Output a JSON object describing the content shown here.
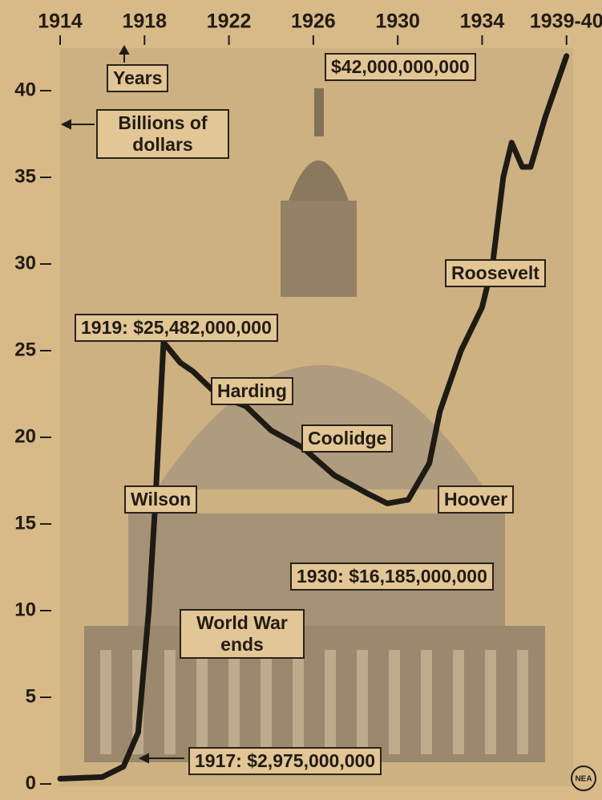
{
  "chart_data": {
    "type": "line",
    "x": [
      1914,
      1916,
      1917,
      1917.7,
      1918.2,
      1918.5,
      1918.9,
      1919.7,
      1920.3,
      1921.5,
      1922.8,
      1924,
      1925.5,
      1927,
      1928.5,
      1929.5,
      1930.5,
      1931.5,
      1932,
      1933,
      1934,
      1934.5,
      1935,
      1935.4,
      1935.9,
      1936.3,
      1937,
      1938
    ],
    "values": [
      0.3,
      0.4,
      1.0,
      2.975,
      10,
      16,
      25.482,
      24.3,
      23.8,
      22.4,
      21.8,
      20.4,
      19.4,
      17.8,
      16.8,
      16.185,
      16.4,
      18.5,
      21.5,
      25,
      27.5,
      30,
      35,
      37,
      35.6,
      35.6,
      38.5,
      42
    ],
    "color": "#1e1a14",
    "xlim": [
      1914,
      1938.2
    ],
    "xticks": [
      1914,
      1918,
      1922,
      1926,
      1930,
      1934,
      {
        "value": 1938,
        "label": "1939-40"
      }
    ],
    "ylim": [
      0,
      42.5
    ],
    "yticks": [
      0,
      5,
      10,
      15,
      20,
      25,
      30,
      35,
      40
    ],
    "annotations": [
      "Years",
      "Billions of dollars",
      "$42,000,000,000",
      "1919: $25,482,000,000",
      "Harding",
      "Coolidge",
      "Wilson",
      "Hoover",
      "Roosevelt",
      "1930: $16,185,000,000",
      "World War ends",
      "1917: $2,975,000,000"
    ],
    "credit": "NEA"
  }
}
